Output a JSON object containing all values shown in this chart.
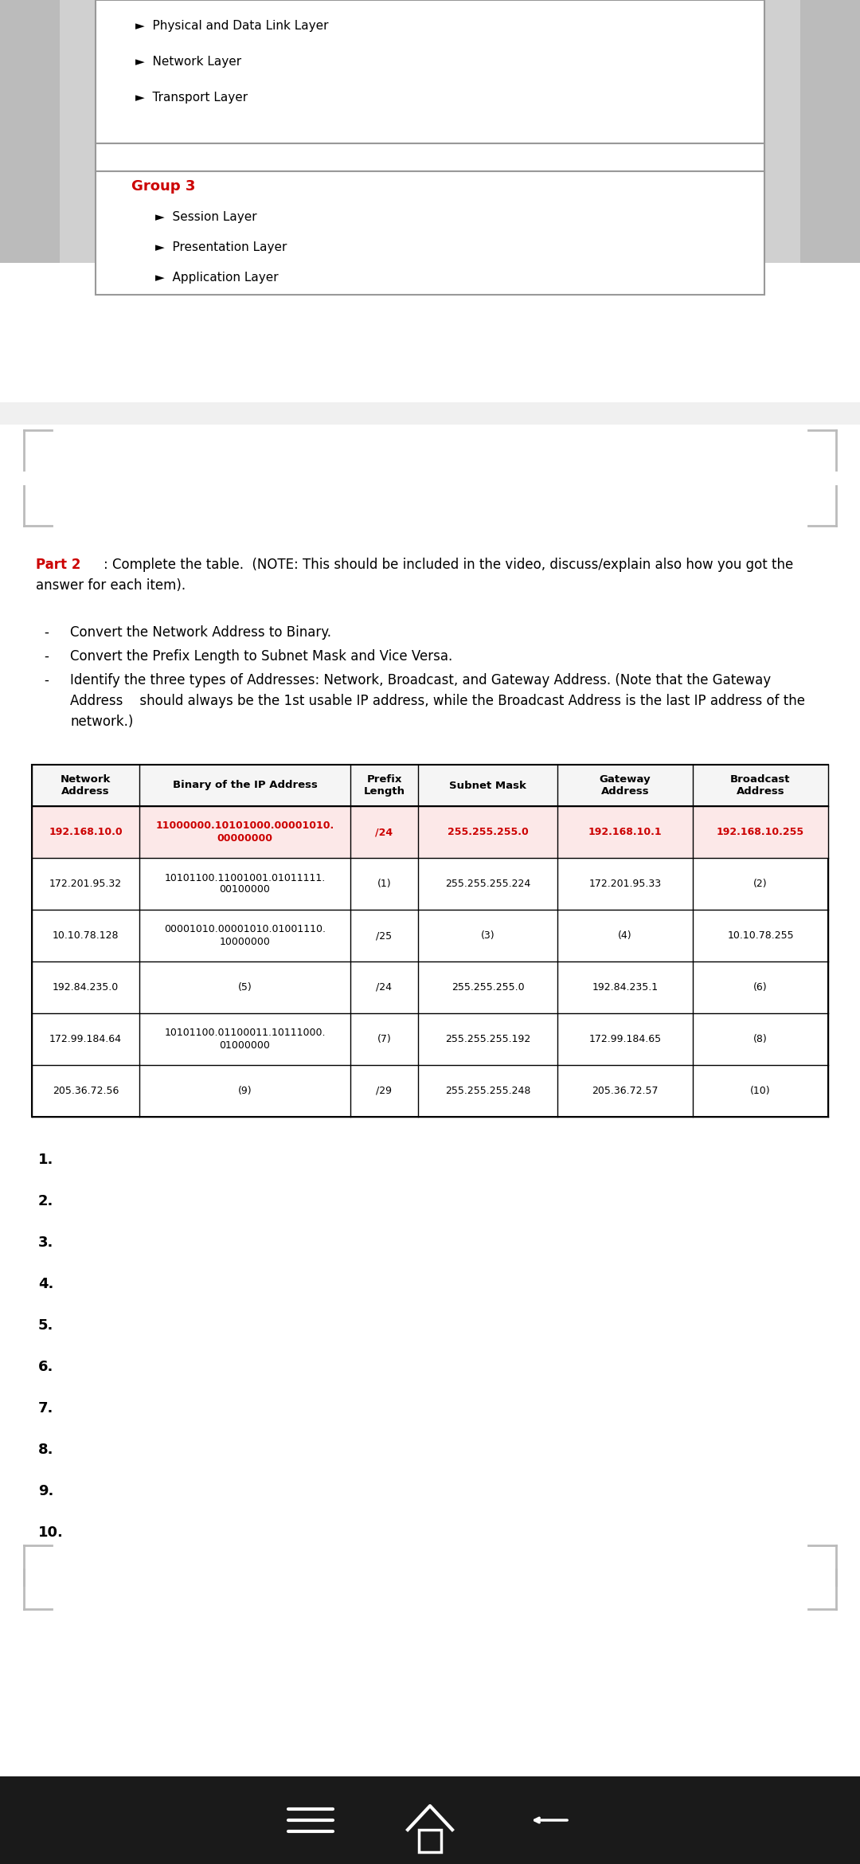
{
  "bg_color": "#bbbbbb",
  "page_bg": "#ffffff",
  "red_color": "#cc0000",
  "black": "#000000",
  "group3_label": "Group 3",
  "group3_items": [
    "►  Session Layer",
    "►  Presentation Layer",
    "►  Application Layer"
  ],
  "prev_items": [
    "►  Physical and Data Link Layer",
    "►  Network Layer",
    "►  Transport Layer"
  ],
  "part2_label": "Part 2",
  "part2_text": ": Complete the table.  (NOTE: This should be included in the video, discuss/explain also how you got the\nanswer for each item).",
  "bullet_items": [
    "Convert the Network Address to Binary.",
    "Convert the Prefix Length to Subnet Mask and Vice Versa.",
    "Identify the three types of Addresses: Network, Broadcast, and Gateway Address. (Note that the Gateway\nAddress    should always be the 1st usable IP address, while the Broadcast Address is the last IP address of the\nnetwork.)"
  ],
  "table_headers": [
    "Network\nAddress",
    "Binary of the IP Address",
    "Prefix\nLength",
    "Subnet Mask",
    "Gateway\nAddress",
    "Broadcast\nAddress"
  ],
  "table_rows": [
    {
      "network": "192.168.10.0",
      "binary": "11000000.10101000.00001010.\n00000000",
      "prefix": "/24",
      "subnet": "255.255.255.0",
      "gateway": "192.168.10.1",
      "broadcast": "192.168.10.255",
      "highlight": true
    },
    {
      "network": "172.201.95.32",
      "binary": "10101100.11001001.01011111.\n00100000",
      "prefix": "(1)",
      "subnet": "255.255.255.224",
      "gateway": "172.201.95.33",
      "broadcast": "(2)",
      "highlight": false
    },
    {
      "network": "10.10.78.128",
      "binary": "00001010.00001010.01001110.\n10000000",
      "prefix": "/25",
      "subnet": "(3)",
      "gateway": "(4)",
      "broadcast": "10.10.78.255",
      "highlight": false
    },
    {
      "network": "192.84.235.0",
      "binary": "(5)",
      "prefix": "/24",
      "subnet": "255.255.255.0",
      "gateway": "192.84.235.1",
      "broadcast": "(6)",
      "highlight": false
    },
    {
      "network": "172.99.184.64",
      "binary": "10101100.01100011.10111000.\n01000000",
      "prefix": "(7)",
      "subnet": "255.255.255.192",
      "gateway": "172.99.184.65",
      "broadcast": "(8)",
      "highlight": false
    },
    {
      "network": "205.36.72.56",
      "binary": "(9)",
      "prefix": "/29",
      "subnet": "255.255.255.248",
      "gateway": "205.36.72.57",
      "broadcast": "(10)",
      "highlight": false
    }
  ],
  "numbered_items": [
    "1.",
    "2.",
    "3.",
    "4.",
    "5.",
    "6.",
    "7.",
    "8.",
    "9.",
    "10."
  ]
}
